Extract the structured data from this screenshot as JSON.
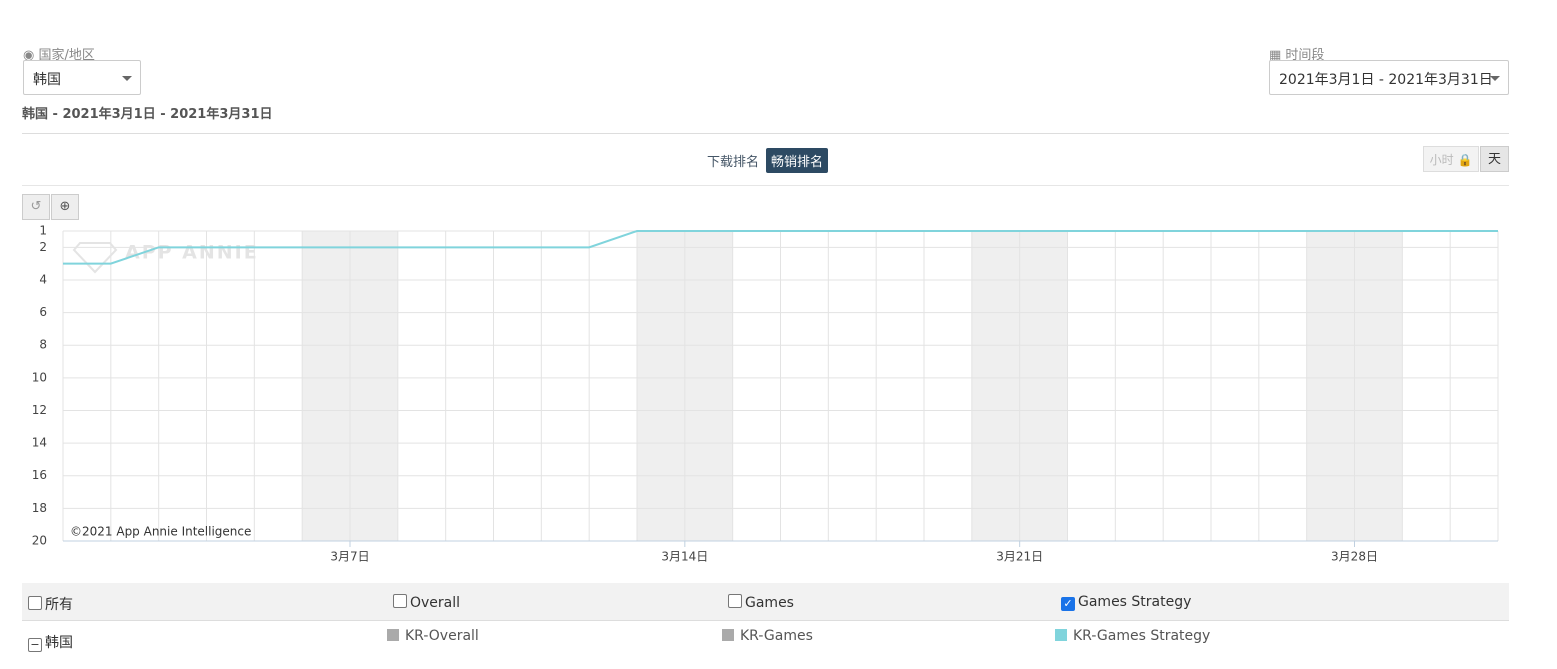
{
  "header": {
    "country_label": "国家/地区",
    "country_value": "韩国",
    "summary": "韩国 - 2021年3月1日 - 2021年3月31日",
    "period_label": "时间段",
    "period_value": "2021年3月1日 - 2021年3月31日"
  },
  "tabs": [
    "下载排名",
    "畅销排名"
  ],
  "granularity": [
    "小时",
    "天"
  ],
  "chart_data": {
    "type": "line",
    "watermark": "APP ANNIE",
    "credit": "©2021 App Annie Intelligence",
    "categories": [
      null,
      null,
      null,
      null,
      null,
      null,
      "3月7日",
      null,
      null,
      null,
      null,
      null,
      null,
      "3月14日",
      null,
      null,
      null,
      null,
      null,
      null,
      "3月21日",
      null,
      null,
      null,
      null,
      null,
      null,
      "3月28日",
      null,
      null,
      null
    ],
    "series": [
      {
        "name": "KR-Games Strategy",
        "color": "#80d4dc",
        "values": [
          3,
          3,
          2,
          2,
          2,
          2,
          2,
          2,
          2,
          2,
          2,
          2,
          1,
          1,
          1,
          1,
          1,
          1,
          1,
          1,
          1,
          1,
          1,
          1,
          1,
          1,
          1,
          1,
          1,
          1,
          1
        ]
      }
    ],
    "ylim": [
      1,
      20
    ],
    "yticks": [
      1,
      2,
      4,
      6,
      8,
      10,
      12,
      14,
      16,
      18,
      20
    ],
    "inverted": true,
    "grid": true
  },
  "table": {
    "header": [
      "所有",
      "Overall",
      "Games",
      "Games Strategy"
    ],
    "checked": [
      false,
      false,
      false,
      true
    ],
    "rows": [
      [
        "韩国",
        "KR-Overall",
        "KR-Games"
      ]
    ],
    "legend_colors": [
      "#aaaaaa",
      "#aaaaaa"
    ]
  }
}
